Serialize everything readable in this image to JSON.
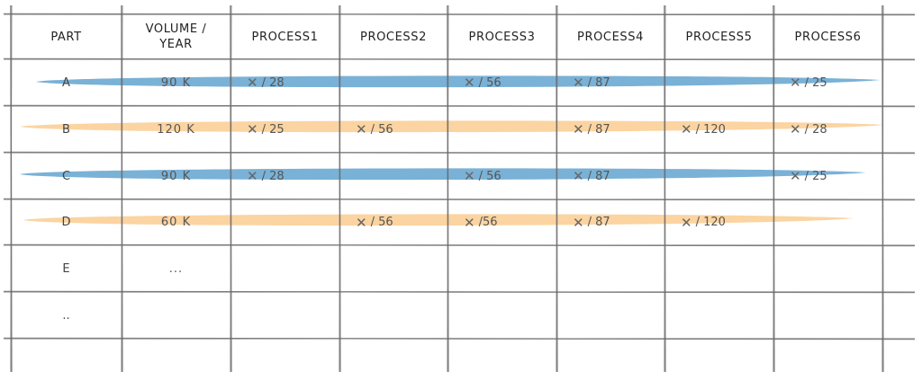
{
  "header": {
    "part": "Part",
    "volume": "Volume /\nYear",
    "processes": [
      "Process1",
      "Process2",
      "Process3",
      "Process4",
      "Process5",
      "Process6"
    ]
  },
  "colors": {
    "blue_stroke": "#73add4",
    "orange_stroke": "#fbd29c",
    "grid_line": "#6a6a6a"
  },
  "rows": [
    {
      "part": "A",
      "volume": "90 K",
      "highlight": "blue",
      "cells": [
        {
          "mark": "✕",
          "value": "/ 28"
        },
        null,
        {
          "mark": "✕",
          "value": "/ 56"
        },
        {
          "mark": "✕",
          "value": "/ 87"
        },
        null,
        {
          "mark": "✕",
          "value": "/ 25"
        }
      ]
    },
    {
      "part": "B",
      "volume": "120 K",
      "highlight": "orange",
      "cells": [
        {
          "mark": "✕",
          "value": "/ 25"
        },
        {
          "mark": "✕",
          "value": "/ 56"
        },
        null,
        {
          "mark": "✕",
          "value": "/ 87"
        },
        {
          "mark": "✕",
          "value": "/ 120"
        },
        {
          "mark": "✕",
          "value": "/ 28"
        }
      ]
    },
    {
      "part": "C",
      "volume": "90 K",
      "highlight": "blue",
      "cells": [
        {
          "mark": "✕",
          "value": "/ 28"
        },
        null,
        {
          "mark": "✕",
          "value": "/ 56"
        },
        {
          "mark": "✕",
          "value": "/ 87"
        },
        null,
        {
          "mark": "✕",
          "value": "/ 25"
        }
      ]
    },
    {
      "part": "D",
      "volume": "60 K",
      "highlight": "orange",
      "cells": [
        null,
        {
          "mark": "✕",
          "value": "/ 56"
        },
        {
          "mark": "✕",
          "value": "/56"
        },
        {
          "mark": "✕",
          "value": "/ 87"
        },
        {
          "mark": "✕",
          "value": "/ 120"
        },
        null
      ]
    },
    {
      "part": "E",
      "volume": "...",
      "highlight": null,
      "cells": [
        null,
        null,
        null,
        null,
        null,
        null
      ]
    },
    {
      "part": "..",
      "volume": "",
      "highlight": null,
      "cells": [
        null,
        null,
        null,
        null,
        null,
        null
      ]
    }
  ]
}
